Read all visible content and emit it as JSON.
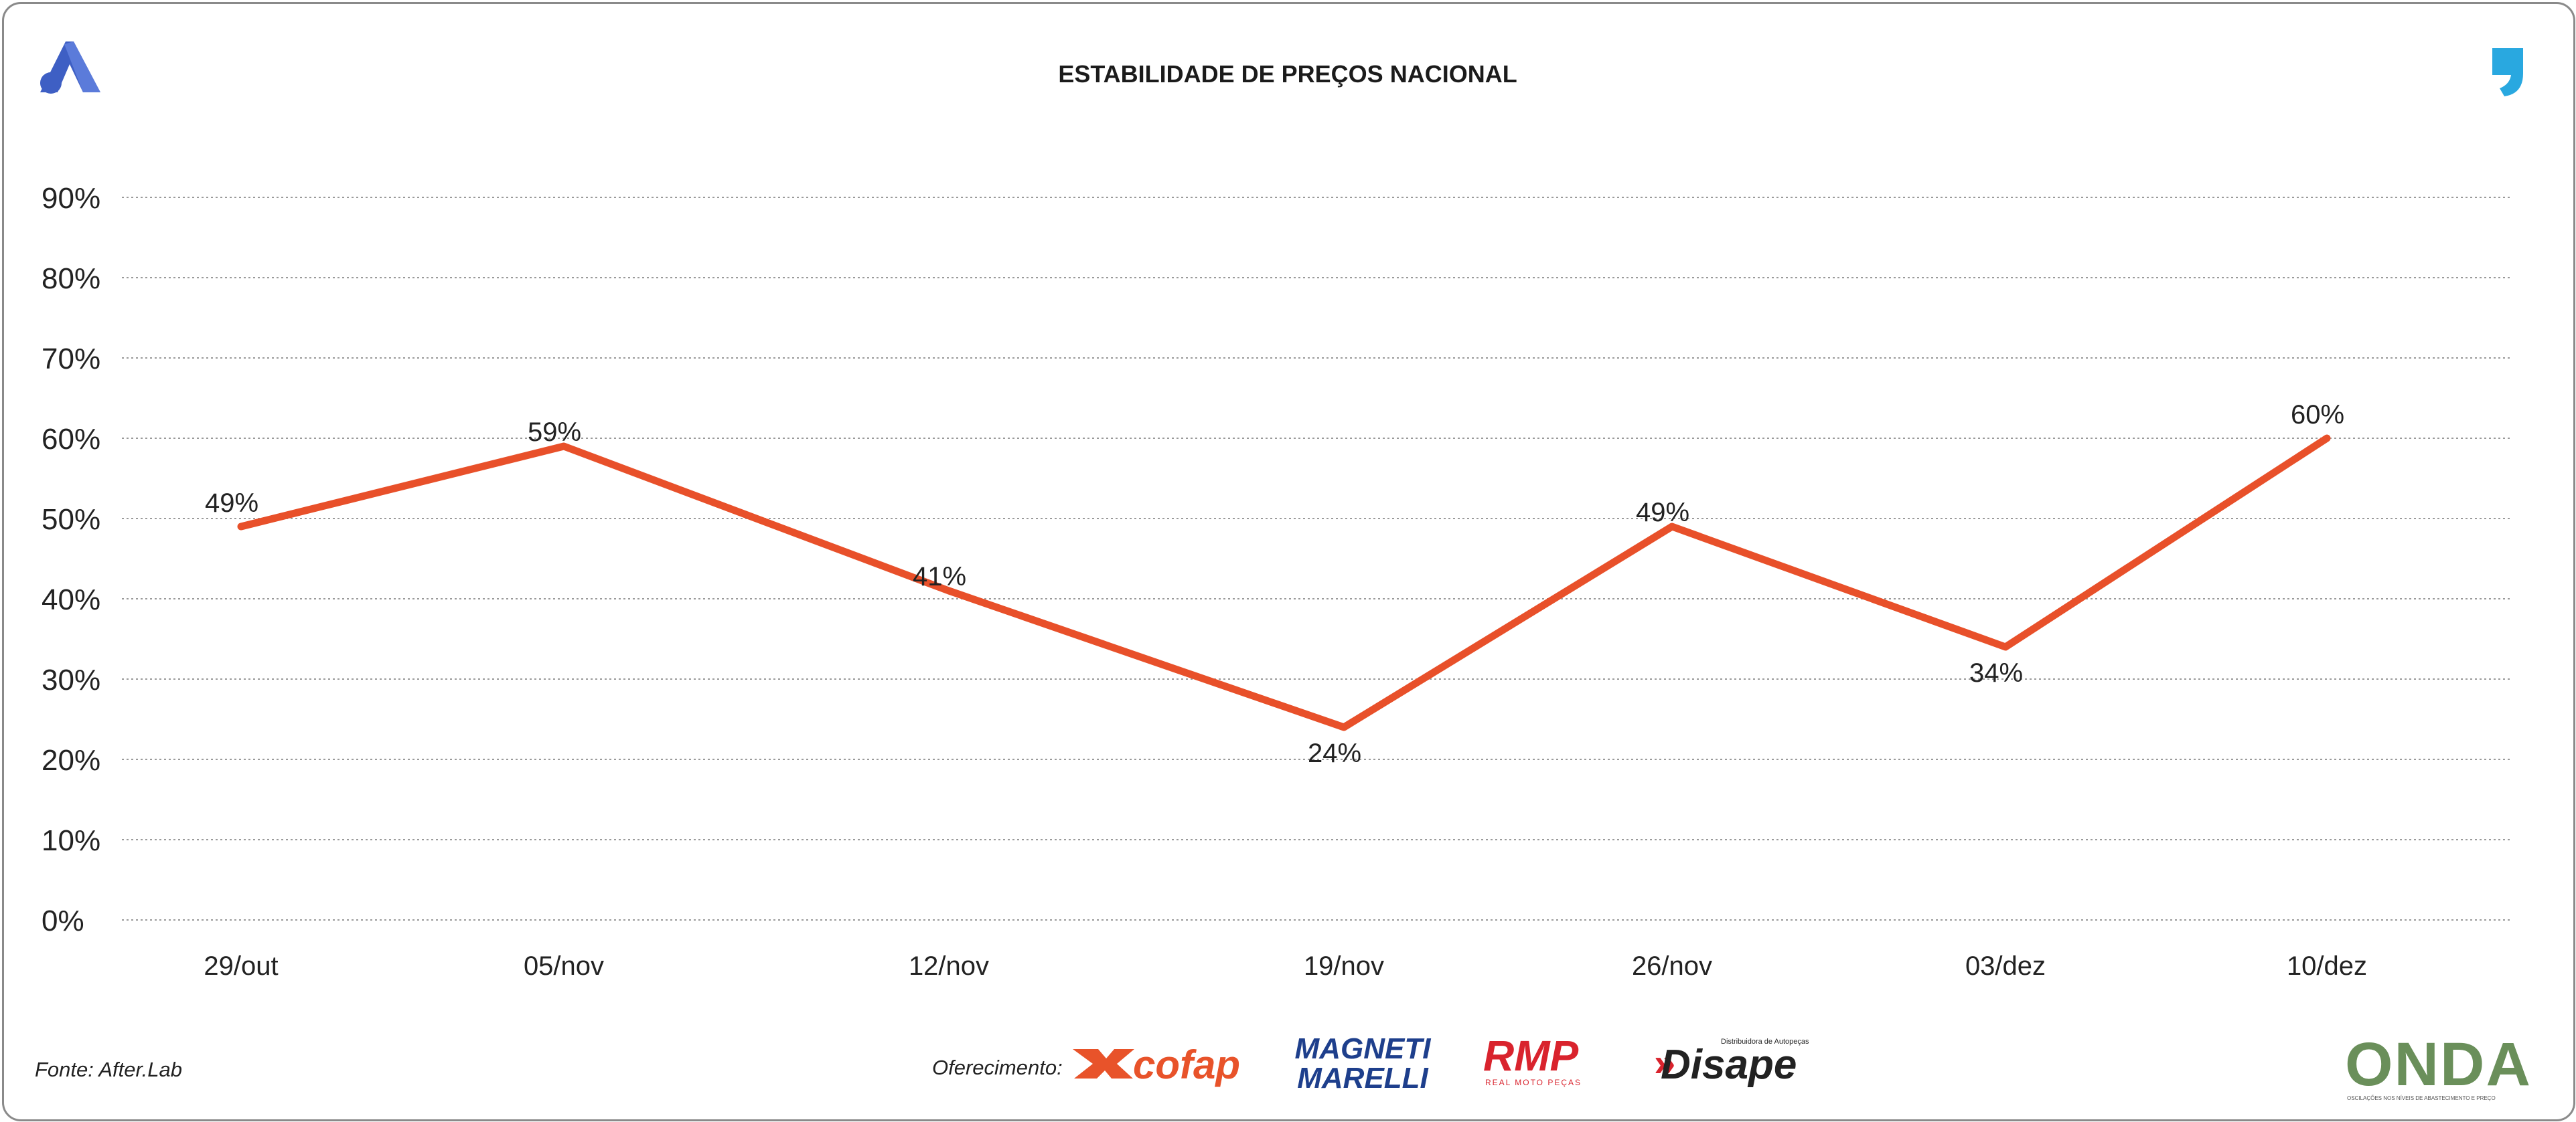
{
  "chart_data": {
    "type": "line",
    "title": "ESTABILIDADE DE PREÇOS NACIONAL",
    "categories": [
      "29/out",
      "05/nov",
      "12/nov",
      "19/nov",
      "26/nov",
      "03/dez",
      "10/dez"
    ],
    "values": [
      49,
      59,
      41,
      24,
      49,
      34,
      60
    ],
    "data_labels": [
      "49%",
      "59%",
      "41%",
      "24%",
      "49%",
      "34%",
      "60%"
    ],
    "y_ticks": [
      "0%",
      "10%",
      "20%",
      "30%",
      "40%",
      "50%",
      "60%",
      "70%",
      "80%",
      "90%"
    ],
    "ylim": [
      0,
      90
    ],
    "xlabel": "",
    "ylabel": "",
    "grid": true,
    "line_color": "#E8502A"
  },
  "footer": {
    "source": "Fonte: After.Lab",
    "sponsor_label": "Oferecimento:",
    "sponsors": {
      "cofap": "cofap",
      "magneti_line1": "MAGNETI",
      "magneti_line2": "MARELLI",
      "rmp": "RMP",
      "rmp_sub": "REAL MOTO PEÇAS",
      "disape": "Disape",
      "disape_sub": "Distribuidora de Autopeças"
    },
    "onda": "ONDA",
    "onda_sub": "OSCILAÇÕES NOS NÍVEIS DE ABASTECIMENTO E PREÇO"
  },
  "colors": {
    "brand_blue": "#3E5FC4",
    "quote_blue": "#29A8E0",
    "cofap_orange": "#E8532A",
    "magneti_blue": "#1E3F8C",
    "rmp_red": "#D9232D",
    "onda_green": "#6A8F5A",
    "onda_blue": "#2C64A8"
  }
}
